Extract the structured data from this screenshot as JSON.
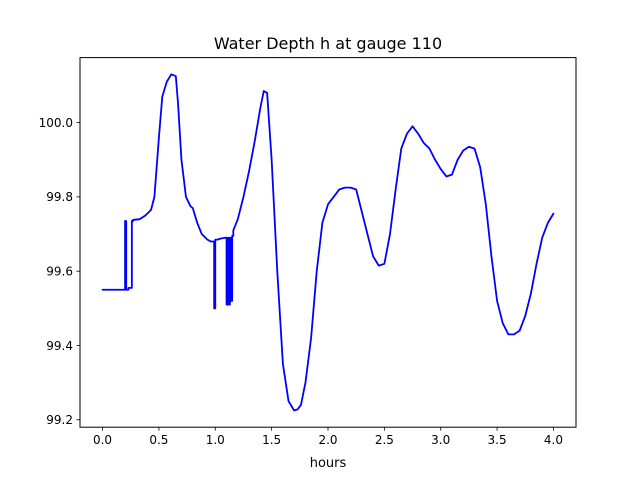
{
  "chart_data": {
    "type": "line",
    "title": "Water Depth h at gauge 110",
    "xlabel": "hours",
    "ylabel": "",
    "xlim": [
      -0.2,
      4.2
    ],
    "ylim": [
      99.18,
      100.175
    ],
    "x_ticks": [
      0.0,
      0.5,
      1.0,
      1.5,
      2.0,
      2.5,
      3.0,
      3.5,
      4.0
    ],
    "x_tick_labels": [
      "0.0",
      "0.5",
      "1.0",
      "1.5",
      "2.0",
      "2.5",
      "3.0",
      "3.5",
      "4.0"
    ],
    "y_ticks": [
      99.2,
      99.4,
      99.6,
      99.8,
      100.0
    ],
    "y_tick_labels": [
      "99.2",
      "99.4",
      "99.6",
      "99.8",
      "100.0"
    ],
    "grid": false,
    "legend": "none",
    "line_color": "#0000ff",
    "series": [
      {
        "x": [
          0.0,
          0.2,
          0.2,
          0.21,
          0.21,
          0.23,
          0.23,
          0.26,
          0.26,
          0.27,
          0.27,
          0.33,
          0.38,
          0.43,
          0.46,
          0.5,
          0.53,
          0.57,
          0.61,
          0.65,
          0.67,
          0.7,
          0.74,
          0.78,
          0.8,
          0.84,
          0.88,
          0.93,
          0.96,
          0.99,
          0.99,
          1.0,
          1.0,
          1.02,
          1.05,
          1.09,
          1.1,
          1.1,
          1.11,
          1.11,
          1.12,
          1.12,
          1.13,
          1.13,
          1.14,
          1.14,
          1.15,
          1.15,
          1.16,
          1.16,
          1.2,
          1.25,
          1.3,
          1.35,
          1.4,
          1.43,
          1.46,
          1.5,
          1.55,
          1.6,
          1.65,
          1.7,
          1.73,
          1.76,
          1.8,
          1.85,
          1.9,
          1.95,
          2.0,
          2.05,
          2.1,
          2.15,
          2.2,
          2.25,
          2.3,
          2.35,
          2.4,
          2.45,
          2.5,
          2.55,
          2.6,
          2.65,
          2.7,
          2.75,
          2.8,
          2.85,
          2.9,
          2.95,
          3.0,
          3.05,
          3.1,
          3.15,
          3.2,
          3.25,
          3.3,
          3.35,
          3.4,
          3.45,
          3.5,
          3.55,
          3.6,
          3.65,
          3.7,
          3.75,
          3.8,
          3.85,
          3.9,
          3.95,
          4.0
        ],
        "y": [
          99.55,
          99.55,
          99.735,
          99.735,
          99.55,
          99.55,
          99.555,
          99.555,
          99.735,
          99.735,
          99.738,
          99.74,
          99.75,
          99.765,
          99.8,
          99.96,
          100.07,
          100.11,
          100.13,
          100.125,
          100.05,
          99.9,
          99.8,
          99.775,
          99.77,
          99.73,
          99.7,
          99.685,
          99.68,
          99.68,
          99.5,
          99.5,
          99.685,
          99.685,
          99.688,
          99.69,
          99.69,
          99.51,
          99.51,
          99.69,
          99.69,
          99.51,
          99.51,
          99.69,
          99.69,
          99.52,
          99.52,
          99.695,
          99.695,
          99.71,
          99.74,
          99.8,
          99.87,
          99.95,
          100.04,
          100.085,
          100.08,
          99.9,
          99.6,
          99.35,
          99.25,
          99.225,
          99.228,
          99.24,
          99.3,
          99.42,
          99.6,
          99.73,
          99.78,
          99.8,
          99.82,
          99.825,
          99.825,
          99.82,
          99.76,
          99.7,
          99.64,
          99.615,
          99.62,
          99.7,
          99.82,
          99.93,
          99.97,
          99.99,
          99.97,
          99.945,
          99.93,
          99.9,
          99.875,
          99.855,
          99.86,
          99.9,
          99.925,
          99.935,
          99.93,
          99.88,
          99.78,
          99.64,
          99.52,
          99.46,
          99.43,
          99.43,
          99.44,
          99.48,
          99.54,
          99.62,
          99.69,
          99.73,
          99.755
        ]
      }
    ]
  }
}
